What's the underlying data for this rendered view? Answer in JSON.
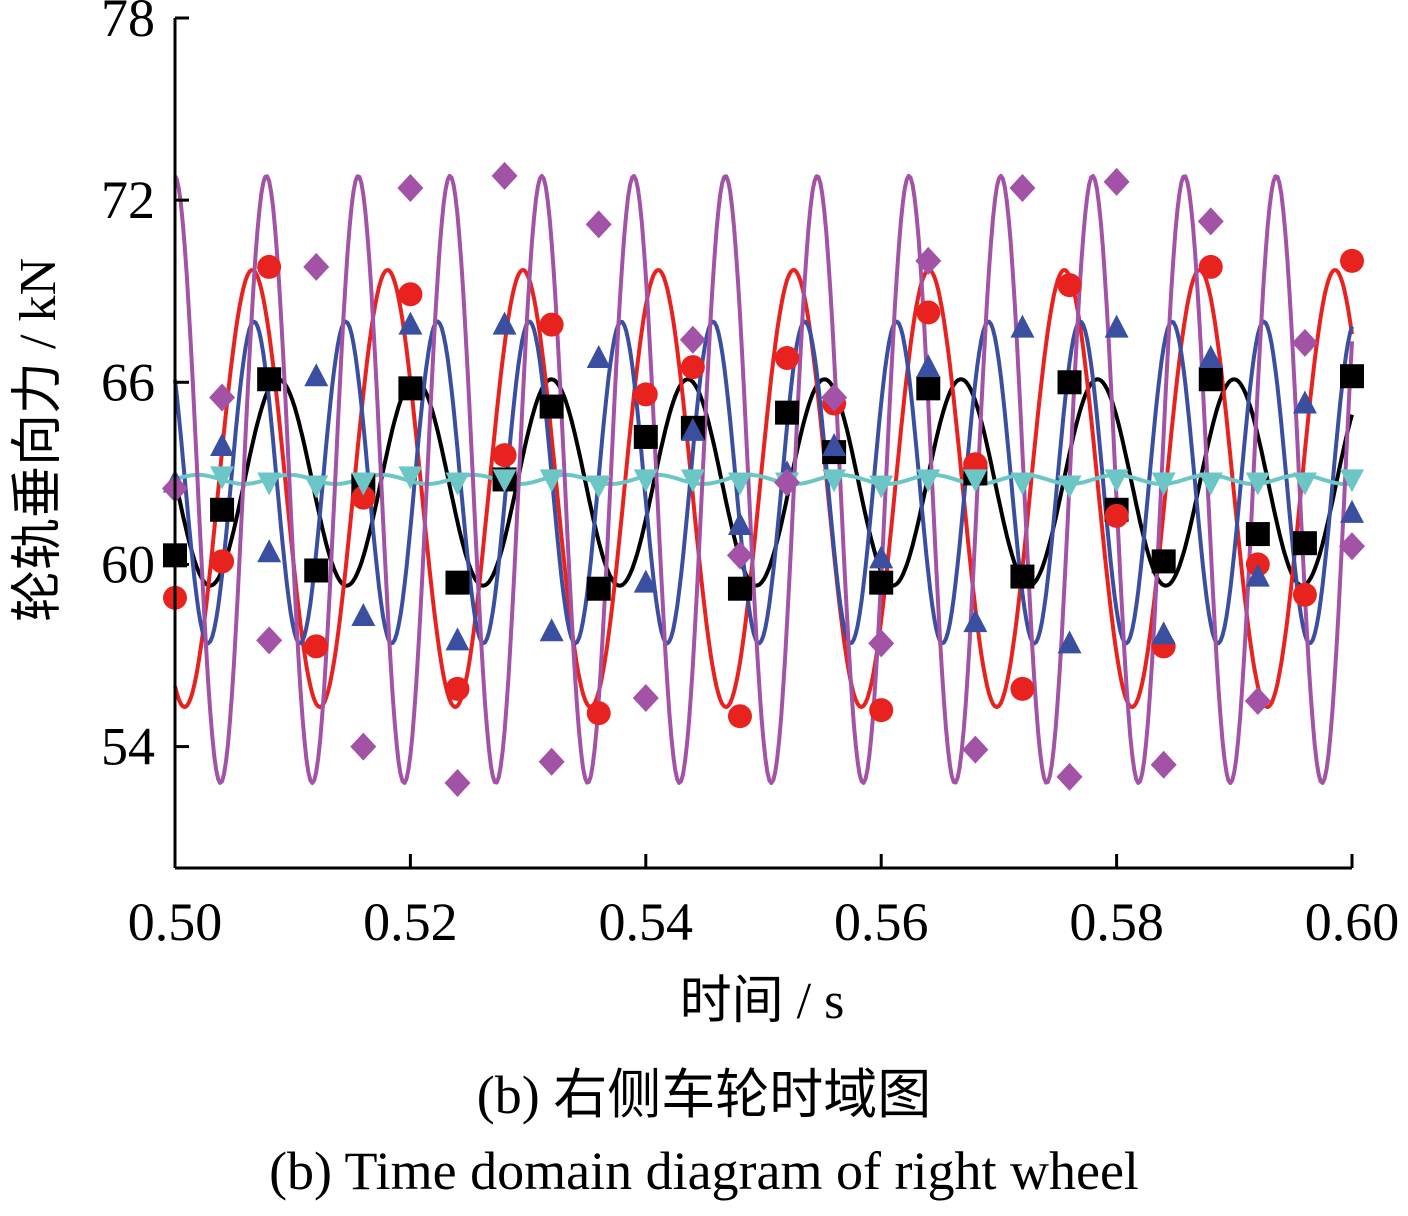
{
  "chart_data": {
    "type": "line",
    "xlabel": "时间 / s",
    "ylabel": "轮轨垂向力 / kN",
    "xlim": [
      0.5,
      0.6
    ],
    "ylim": [
      50,
      78
    ],
    "xticks": [
      "0.50",
      "0.52",
      "0.54",
      "0.56",
      "0.58",
      "0.60"
    ],
    "yticks": [
      "54",
      "60",
      "66",
      "72",
      "78"
    ],
    "grid": false,
    "legend": "none",
    "series": [
      {
        "color": "#000000",
        "marker": "square",
        "mean": 62.7,
        "amplitude": 3.4,
        "period": 0.0116,
        "phase": 3.1,
        "x": [
          0.5,
          0.504,
          0.508,
          0.512,
          0.516,
          0.52,
          0.524,
          0.528,
          0.532,
          0.536,
          0.54,
          0.544,
          0.548,
          0.552,
          0.556,
          0.56,
          0.564,
          0.568,
          0.572,
          0.576,
          0.58,
          0.584,
          0.588,
          0.592,
          0.596,
          0.6
        ],
        "y": [
          60.3,
          61.8,
          66.1,
          59.8,
          62.6,
          65.8,
          59.4,
          62.8,
          65.2,
          59.2,
          64.2,
          64.5,
          59.2,
          65.0,
          63.7,
          59.4,
          65.8,
          63.0,
          59.6,
          66.0,
          61.8,
          60.1,
          66.1,
          61.0,
          60.7,
          66.2
        ]
      },
      {
        "color": "#e8231f",
        "marker": "circle",
        "mean": 62.5,
        "amplitude": 7.2,
        "period": 0.0115,
        "phase": 4.27,
        "x": [
          0.5,
          0.504,
          0.508,
          0.512,
          0.516,
          0.52,
          0.524,
          0.528,
          0.532,
          0.536,
          0.54,
          0.544,
          0.548,
          0.552,
          0.556,
          0.56,
          0.564,
          0.568,
          0.572,
          0.576,
          0.58,
          0.584,
          0.588,
          0.592,
          0.596,
          0.6
        ],
        "y": [
          58.9,
          60.1,
          69.8,
          57.3,
          62.2,
          68.9,
          55.9,
          63.6,
          67.9,
          55.1,
          65.6,
          66.5,
          55.0,
          66.8,
          65.3,
          55.2,
          68.3,
          63.3,
          55.9,
          69.2,
          61.6,
          57.3,
          69.8,
          60.0,
          59.0,
          70.0
        ]
      },
      {
        "color": "#3a4fa0",
        "marker": "triangle-up",
        "mean": 62.7,
        "amplitude": 5.3,
        "period": 0.0078,
        "phase": 2.45,
        "x": [
          0.5,
          0.504,
          0.508,
          0.512,
          0.516,
          0.52,
          0.524,
          0.528,
          0.532,
          0.536,
          0.54,
          0.544,
          0.548,
          0.552,
          0.556,
          0.56,
          0.564,
          0.568,
          0.572,
          0.576,
          0.58,
          0.584,
          0.588,
          0.592,
          0.596,
          0.6
        ],
        "y": [
          62.7,
          63.9,
          60.4,
          66.2,
          58.3,
          67.9,
          57.5,
          67.9,
          57.8,
          66.8,
          59.4,
          64.4,
          61.3,
          63.0,
          63.9,
          60.2,
          66.5,
          58.1,
          67.8,
          57.4,
          67.8,
          57.7,
          66.8,
          59.6,
          65.3,
          61.7
        ]
      },
      {
        "color": "#6cc6c6",
        "marker": "triangle-down",
        "mean": 62.8,
        "amplitude": 0.15,
        "period": 0.0078,
        "phase": 0.0,
        "x": [
          0.504,
          0.508,
          0.512,
          0.516,
          0.52,
          0.524,
          0.528,
          0.532,
          0.536,
          0.54,
          0.544,
          0.548,
          0.552,
          0.556,
          0.56,
          0.564,
          0.568,
          0.572,
          0.576,
          0.58,
          0.584,
          0.588,
          0.592,
          0.596,
          0.6
        ],
        "y": [
          62.9,
          62.7,
          62.6,
          62.7,
          62.9,
          62.7,
          62.8,
          62.8,
          62.6,
          62.8,
          62.8,
          62.7,
          62.7,
          62.8,
          62.6,
          62.8,
          62.8,
          62.7,
          62.6,
          62.8,
          62.7,
          62.7,
          62.7,
          62.7,
          62.8
        ]
      },
      {
        "color": "#a353a6",
        "marker": "diamond",
        "mean": 62.8,
        "amplitude": 10.0,
        "period": 0.0078,
        "phase": 1.6,
        "x": [
          0.5,
          0.504,
          0.508,
          0.512,
          0.516,
          0.52,
          0.524,
          0.528,
          0.532,
          0.536,
          0.54,
          0.544,
          0.548,
          0.552,
          0.556,
          0.56,
          0.564,
          0.568,
          0.572,
          0.576,
          0.58,
          0.584,
          0.588,
          0.592,
          0.596,
          0.6
        ],
        "y": [
          62.5,
          65.5,
          57.5,
          69.8,
          54.0,
          72.4,
          52.8,
          72.8,
          53.5,
          71.2,
          55.6,
          67.4,
          60.3,
          62.7,
          65.5,
          57.4,
          70.0,
          53.9,
          72.4,
          53.0,
          72.6,
          53.4,
          71.3,
          55.5,
          67.3,
          60.6
        ]
      }
    ]
  },
  "caption": {
    "cn": "(b) 右侧车轮时域图",
    "en": "(b) Time domain diagram of right wheel"
  }
}
